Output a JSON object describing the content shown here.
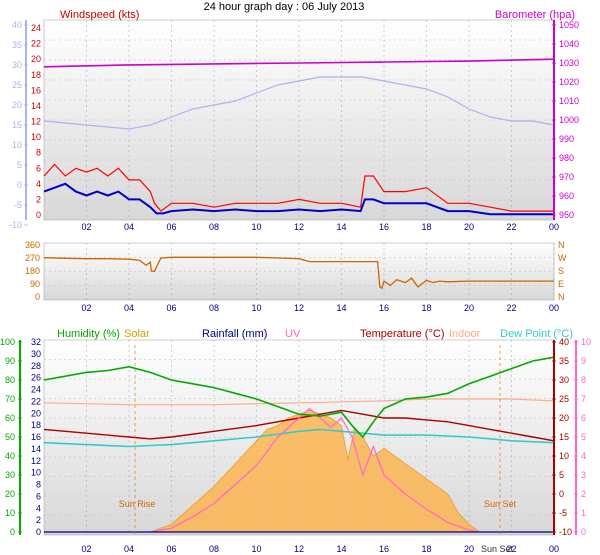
{
  "page_title": "24 hour graph day : 06 July 2013",
  "chart_data": [
    {
      "type": "line",
      "panel": "wind-barometer",
      "legend": [
        "Windspeed (kts)",
        "Barometer (hpa)"
      ],
      "x_ticks": [
        "02",
        "04",
        "06",
        "08",
        "10",
        "12",
        "14",
        "16",
        "18",
        "20",
        "22",
        "00"
      ],
      "left_outer_ticks": [
        "-10",
        "-5",
        "0",
        "5",
        "10",
        "15",
        "20",
        "25",
        "30",
        "35",
        "40"
      ],
      "left_outer_range": [
        -10,
        40
      ],
      "left_inner_ticks": [
        "0",
        "2",
        "4",
        "6",
        "8",
        "10",
        "12",
        "14",
        "16",
        "18",
        "20",
        "22",
        "24"
      ],
      "left_inner_range": [
        0,
        24
      ],
      "right_ticks": [
        "950",
        "960",
        "970",
        "980",
        "990",
        "1000",
        "1010",
        "1020",
        "1030",
        "1040",
        "1050"
      ],
      "right_range": [
        950,
        1050
      ],
      "colors": {
        "gust": "#ff0000",
        "wind": "#0000cc",
        "outer": "#a8b4ee",
        "barometer": "#cc00cc",
        "left_inner": "#cc0000"
      },
      "series": [
        {
          "name": "Windspeed (kts)",
          "axis": "left_inner",
          "x": [
            0,
            0.5,
            1,
            1.5,
            2,
            2.5,
            3,
            3.5,
            4,
            4.5,
            5,
            5.2,
            5.5,
            6,
            7,
            8,
            9,
            10,
            11,
            12,
            13,
            14,
            14.9,
            15.1,
            15.5,
            16,
            17,
            18,
            19,
            20,
            21,
            22,
            23,
            24
          ],
          "values": [
            5,
            6.5,
            5,
            6,
            5.5,
            6,
            5,
            6,
            4.5,
            4.5,
            3,
            1.5,
            0.5,
            1.5,
            1.5,
            1,
            1.5,
            1.5,
            1.5,
            2,
            1.5,
            1.5,
            1,
            5,
            5,
            3,
            3,
            3.5,
            1.5,
            1.5,
            1,
            0.5,
            0.5,
            0.5
          ]
        },
        {
          "name": "Wind (kts)",
          "axis": "left_inner",
          "x": [
            0,
            0.5,
            1,
            1.5,
            2,
            2.5,
            3,
            3.5,
            4,
            4.5,
            5,
            5.3,
            5.6,
            6,
            7,
            8,
            9,
            10,
            11,
            12,
            13,
            14,
            14.9,
            15.1,
            15.5,
            16,
            17,
            18,
            19,
            20,
            21,
            22,
            23,
            24
          ],
          "values": [
            3,
            3.5,
            4,
            3,
            2.5,
            3,
            2.5,
            3,
            2,
            2,
            1,
            0.2,
            0.2,
            0.5,
            0.7,
            0.5,
            0.7,
            0.5,
            0.5,
            0.7,
            0.5,
            0.7,
            0.5,
            2,
            2,
            1.5,
            1.5,
            1.5,
            0.5,
            0.5,
            0.1,
            0.1,
            0.1,
            0.1
          ]
        },
        {
          "name": "Outer",
          "axis": "left_outer",
          "x": [
            0,
            2,
            4,
            5,
            6,
            7,
            8,
            9,
            10,
            11,
            12,
            13,
            14,
            15,
            16,
            17,
            18,
            19,
            20,
            21,
            22,
            23,
            24
          ],
          "values": [
            16,
            15,
            14,
            15,
            17,
            19,
            20,
            21,
            23,
            25,
            26,
            27,
            27,
            27,
            26,
            25,
            24,
            22,
            19,
            17,
            16,
            16,
            15
          ]
        },
        {
          "name": "Barometer (hpa)",
          "axis": "right",
          "x": [
            0,
            4,
            8,
            12,
            16,
            20,
            24
          ],
          "values": [
            1028,
            1029,
            1029.5,
            1030,
            1030.5,
            1031,
            1032
          ]
        }
      ]
    },
    {
      "type": "line",
      "panel": "wind-direction",
      "x_ticks": [
        "02",
        "04",
        "06",
        "08",
        "10",
        "12",
        "14",
        "16",
        "18",
        "20",
        "22",
        "00"
      ],
      "left_ticks": [
        "0",
        "90",
        "180",
        "270",
        "360"
      ],
      "left_range": [
        0,
        360
      ],
      "right_ticks": [
        "N",
        "E",
        "S",
        "W",
        "N"
      ],
      "colors": {
        "direction": "#cc6600"
      },
      "series": [
        {
          "name": "Direction",
          "x": [
            0,
            1,
            2,
            3,
            4,
            4.5,
            4.8,
            5,
            5.05,
            5.2,
            5.5,
            6,
            8,
            10,
            11,
            12,
            12.5,
            13,
            14,
            15,
            15.7,
            15.8,
            15.9,
            16,
            16.3,
            16.6,
            17,
            17.3,
            17.6,
            18,
            18.3,
            18.6,
            19,
            20,
            22,
            24
          ],
          "values": [
            272,
            268,
            265,
            265,
            262,
            255,
            220,
            240,
            180,
            178,
            270,
            275,
            275,
            275,
            270,
            265,
            245,
            245,
            245,
            245,
            245,
            70,
            60,
            110,
            80,
            120,
            100,
            130,
            70,
            115,
            100,
            110,
            105,
            110,
            110,
            110
          ]
        }
      ]
    },
    {
      "type": "line",
      "panel": "temperature-humidity",
      "legend": [
        "Humidity (%)",
        "Solar",
        "Rainfall (mm)",
        "UV",
        "Temperature (°C)",
        "Indoor",
        "Dew Point (°C)"
      ],
      "annotations": [
        "Sun Rise",
        "Sun Set",
        "Sun Set"
      ],
      "x_ticks": [
        "02",
        "04",
        "06",
        "08",
        "10",
        "12",
        "14",
        "16",
        "18",
        "20",
        "22",
        "00"
      ],
      "humidity_ticks": [
        "0",
        "10",
        "20",
        "30",
        "40",
        "50",
        "60",
        "70",
        "80",
        "90",
        "100"
      ],
      "humidity_range": [
        0,
        100
      ],
      "rain_ticks": [
        "0",
        "2",
        "4",
        "6",
        "8",
        "10",
        "12",
        "14",
        "16",
        "18",
        "20",
        "22",
        "24",
        "26",
        "28",
        "30",
        "32"
      ],
      "rain_range": [
        0,
        32
      ],
      "temp_ticks": [
        "-10",
        "-5",
        "0",
        "5",
        "10",
        "15",
        "20",
        "25",
        "30",
        "35",
        "40"
      ],
      "temp_range": [
        -10,
        40
      ],
      "uv_ticks": [
        "0",
        "1",
        "2",
        "3",
        "4",
        "5",
        "6",
        "7",
        "8",
        "9",
        "10"
      ],
      "uv_range": [
        0,
        10
      ],
      "colors": {
        "humidity": "#00aa00",
        "solar": "#ffb347",
        "rain": "#000080",
        "uv": "#ff66cc",
        "temp": "#aa0000",
        "indoor": "#ffaa88",
        "dew": "#33cccc"
      },
      "series": [
        {
          "name": "Humidity (%)",
          "axis": "humidity",
          "x": [
            0,
            1,
            2,
            3,
            4,
            5,
            6,
            7,
            8,
            9,
            10,
            11,
            12,
            13,
            14,
            14.5,
            15,
            15.5,
            16,
            17,
            18,
            19,
            20,
            21,
            22,
            23,
            24
          ],
          "values": [
            80,
            82,
            84,
            85,
            87,
            84,
            80,
            78,
            76,
            73,
            70,
            66,
            62,
            61,
            63,
            56,
            50,
            58,
            65,
            70,
            71,
            73,
            78,
            82,
            86,
            90,
            92
          ]
        },
        {
          "name": "Solar",
          "axis": "temp",
          "x": [
            5,
            6,
            7,
            8,
            9,
            10,
            10.5,
            11,
            11.5,
            12,
            12.5,
            13,
            13.5,
            14,
            14.3,
            14.6,
            15,
            15.5,
            16,
            17,
            18,
            19,
            19.5,
            20,
            20.5
          ],
          "values": [
            -10,
            -8,
            -3,
            2,
            8,
            14,
            17,
            18,
            20,
            21,
            22,
            21,
            20,
            18,
            9,
            17,
            15,
            10,
            12,
            8,
            4,
            0,
            -5,
            -8,
            -10
          ]
        },
        {
          "name": "Rainfall (mm)",
          "axis": "rain",
          "x": [
            0,
            24
          ],
          "values": [
            0,
            0
          ]
        },
        {
          "name": "UV",
          "axis": "uv",
          "x": [
            5,
            6,
            7,
            8,
            9,
            10,
            11,
            12,
            12.5,
            13,
            13.5,
            14,
            14.5,
            15,
            15.5,
            16,
            17,
            18,
            19,
            20,
            20.5
          ],
          "values": [
            0,
            0.2,
            0.8,
            1.5,
            2.5,
            3.5,
            5,
            6,
            6.5,
            6,
            5.5,
            6,
            5,
            3,
            4.5,
            3,
            2,
            1.2,
            0.5,
            0.1,
            0
          ]
        },
        {
          "name": "Temperature (°C)",
          "axis": "temp",
          "x": [
            0,
            2,
            4,
            5,
            6,
            8,
            10,
            12,
            13,
            14,
            15,
            16,
            17,
            18,
            19,
            20,
            21,
            22,
            23,
            24
          ],
          "values": [
            17,
            16,
            15,
            14.5,
            15,
            16.5,
            18,
            20,
            21,
            22,
            21,
            20,
            20,
            19.5,
            19,
            18,
            17,
            16,
            15,
            14
          ]
        },
        {
          "name": "Indoor",
          "axis": "temp",
          "x": [
            0,
            4,
            8,
            12,
            16,
            18,
            20,
            22,
            24
          ],
          "values": [
            24,
            23.5,
            23.5,
            24,
            24.5,
            25,
            25,
            25,
            24.5
          ]
        },
        {
          "name": "Dew Point (°C)",
          "axis": "temp",
          "x": [
            0,
            2,
            4,
            6,
            8,
            10,
            12,
            13,
            14,
            15,
            16,
            18,
            20,
            22,
            24
          ],
          "values": [
            13.5,
            13,
            12.5,
            13,
            14,
            15,
            16.5,
            17,
            16.5,
            16,
            15.5,
            15.5,
            15,
            14,
            13.5
          ]
        }
      ]
    }
  ]
}
